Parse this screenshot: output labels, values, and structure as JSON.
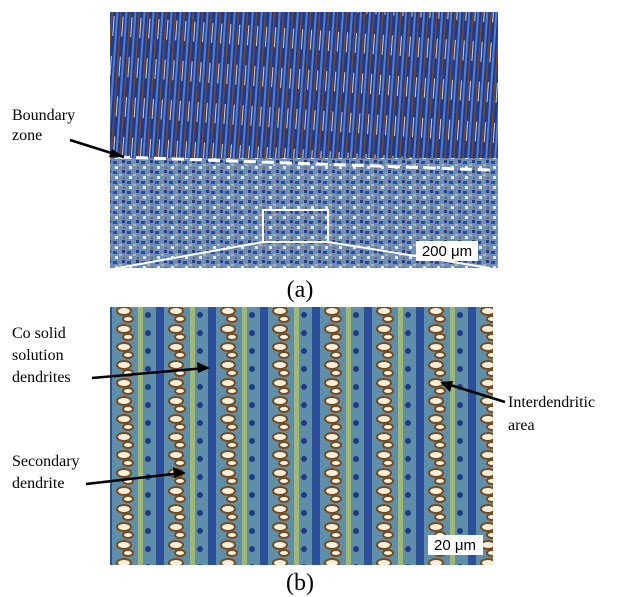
{
  "panels": [
    {
      "label": "(a)",
      "scale_bar": "200 μm",
      "annotations": [
        {
          "lines": [
            "Boundary",
            "zone"
          ]
        }
      ]
    },
    {
      "label": "(b)",
      "scale_bar": "20 μm",
      "annotations": [
        {
          "lines": [
            "Co solid",
            "solution",
            "dendrites"
          ]
        },
        {
          "lines": [
            "Secondary",
            "dendrite"
          ]
        },
        {
          "lines": [
            "Interdendritic",
            "area"
          ]
        }
      ]
    }
  ]
}
